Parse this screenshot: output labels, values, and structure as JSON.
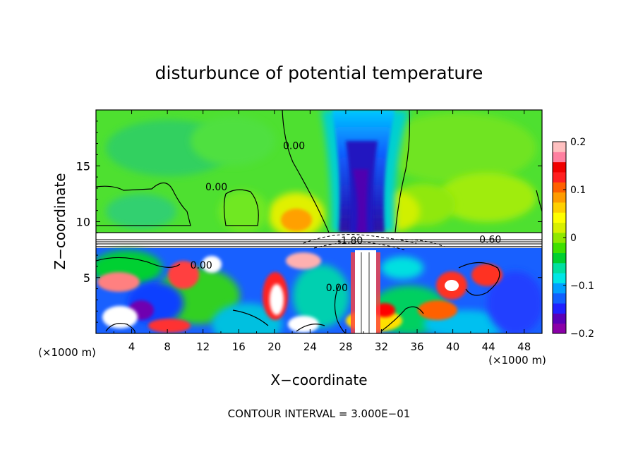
{
  "chart_data": {
    "type": "heatmap",
    "title": "disturbunce of potential temperature",
    "xlabel": "X−coordinate",
    "ylabel": "Z−coordinate",
    "x_unit": "(×1000 m)",
    "z_unit": "(×1000 m)",
    "xlim": [
      0,
      50
    ],
    "ylim": [
      0,
      20
    ],
    "x_ticks": [
      4,
      8,
      12,
      16,
      20,
      24,
      28,
      32,
      36,
      40,
      44,
      48
    ],
    "y_ticks": [
      5,
      10,
      15
    ],
    "colorbar": {
      "ticks": [
        0.2,
        0.1,
        0,
        -0.1,
        -0.2
      ],
      "tick_labels": [
        "0.2",
        "0.1",
        "0",
        "−0.1",
        "−0.2"
      ],
      "range": [
        -0.2,
        0.2
      ],
      "colors": [
        "#8a00a8",
        "#5a00b8",
        "#2020ff",
        "#1060ff",
        "#00a0ff",
        "#00e6e6",
        "#00e0a0",
        "#00d030",
        "#40e000",
        "#90e800",
        "#d8f000",
        "#ffff00",
        "#ffd000",
        "#ff9c00",
        "#ff6000",
        "#ff2020",
        "#f00000",
        "#ff80a0",
        "#ffc0c0"
      ]
    },
    "contour_labels": [
      {
        "text": "0.00",
        "x": 13.5,
        "z": 12.8
      },
      {
        "text": "0.00",
        "x": 22.2,
        "z": 16.5
      },
      {
        "text": "0.00",
        "x": 11.8,
        "z": 5.8
      },
      {
        "text": "0.60",
        "x": 44.2,
        "z": 8.1
      },
      {
        "text": "-1.80",
        "x": 28.5,
        "z": 8.0
      },
      {
        "text": "0.00",
        "x": 27.0,
        "z": 3.8
      }
    ],
    "footnote": "CONTOUR INTERVAL = 3.000E−01"
  }
}
